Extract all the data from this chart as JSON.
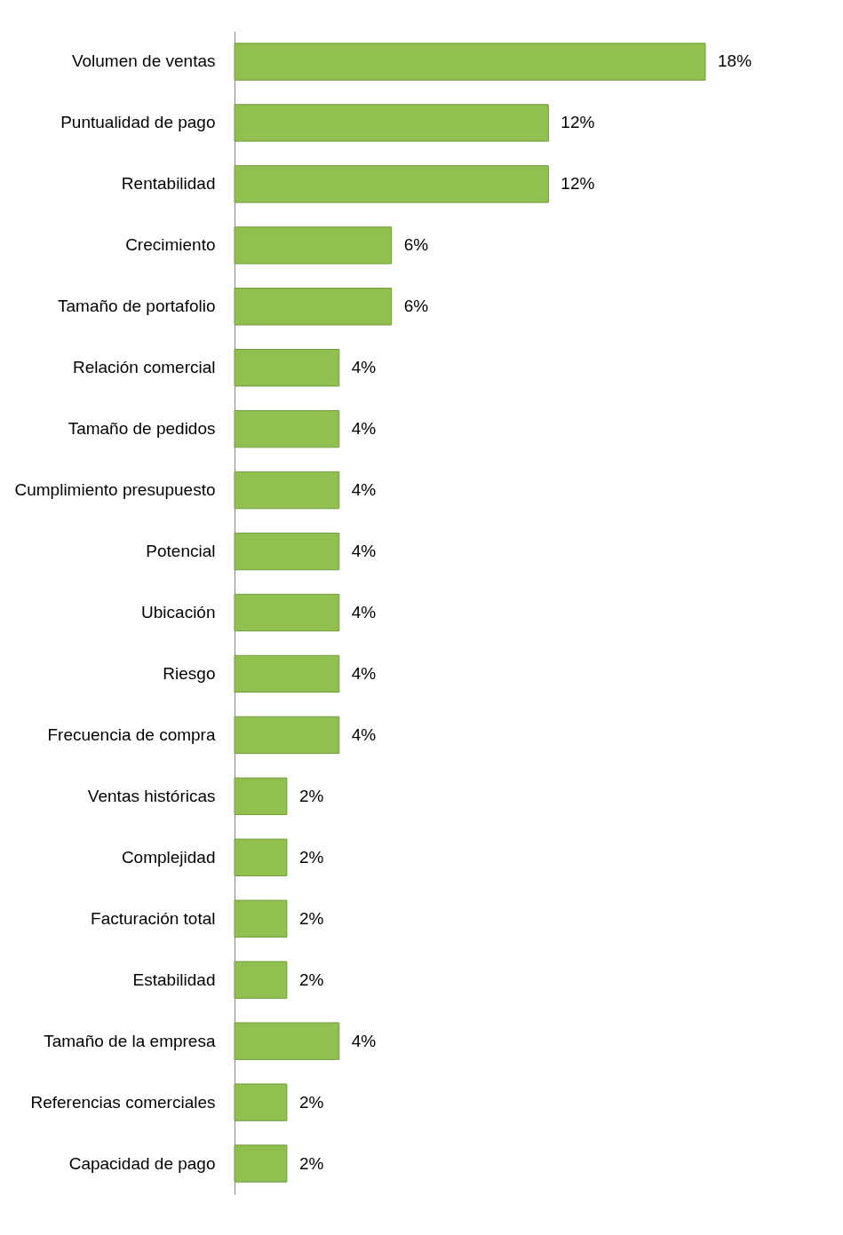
{
  "chart_data": {
    "type": "bar",
    "orientation": "horizontal",
    "categories": [
      "Volumen de ventas",
      "Puntualidad de pago",
      "Rentabilidad",
      "Crecimiento",
      "Tamaño de portafolio",
      "Relación comercial",
      "Tamaño de pedidos",
      "Cumplimiento presupuesto",
      "Potencial",
      "Ubicación",
      "Riesgo",
      "Frecuencia de compra",
      "Ventas históricas",
      "Complejidad",
      "Facturación total",
      "Estabilidad",
      "Tamaño de la empresa",
      "Referencias comerciales",
      "Capacidad de pago"
    ],
    "values": [
      18,
      12,
      12,
      6,
      6,
      4,
      4,
      4,
      4,
      4,
      4,
      4,
      2,
      2,
      2,
      2,
      4,
      2,
      2
    ],
    "value_labels": [
      "18%",
      "12%",
      "12%",
      "6%",
      "6%",
      "4%",
      "4%",
      "4%",
      "4%",
      "4%",
      "4%",
      "4%",
      "2%",
      "2%",
      "2%",
      "2%",
      "4%",
      "2%",
      "2%"
    ],
    "color": "#92c050"
  }
}
